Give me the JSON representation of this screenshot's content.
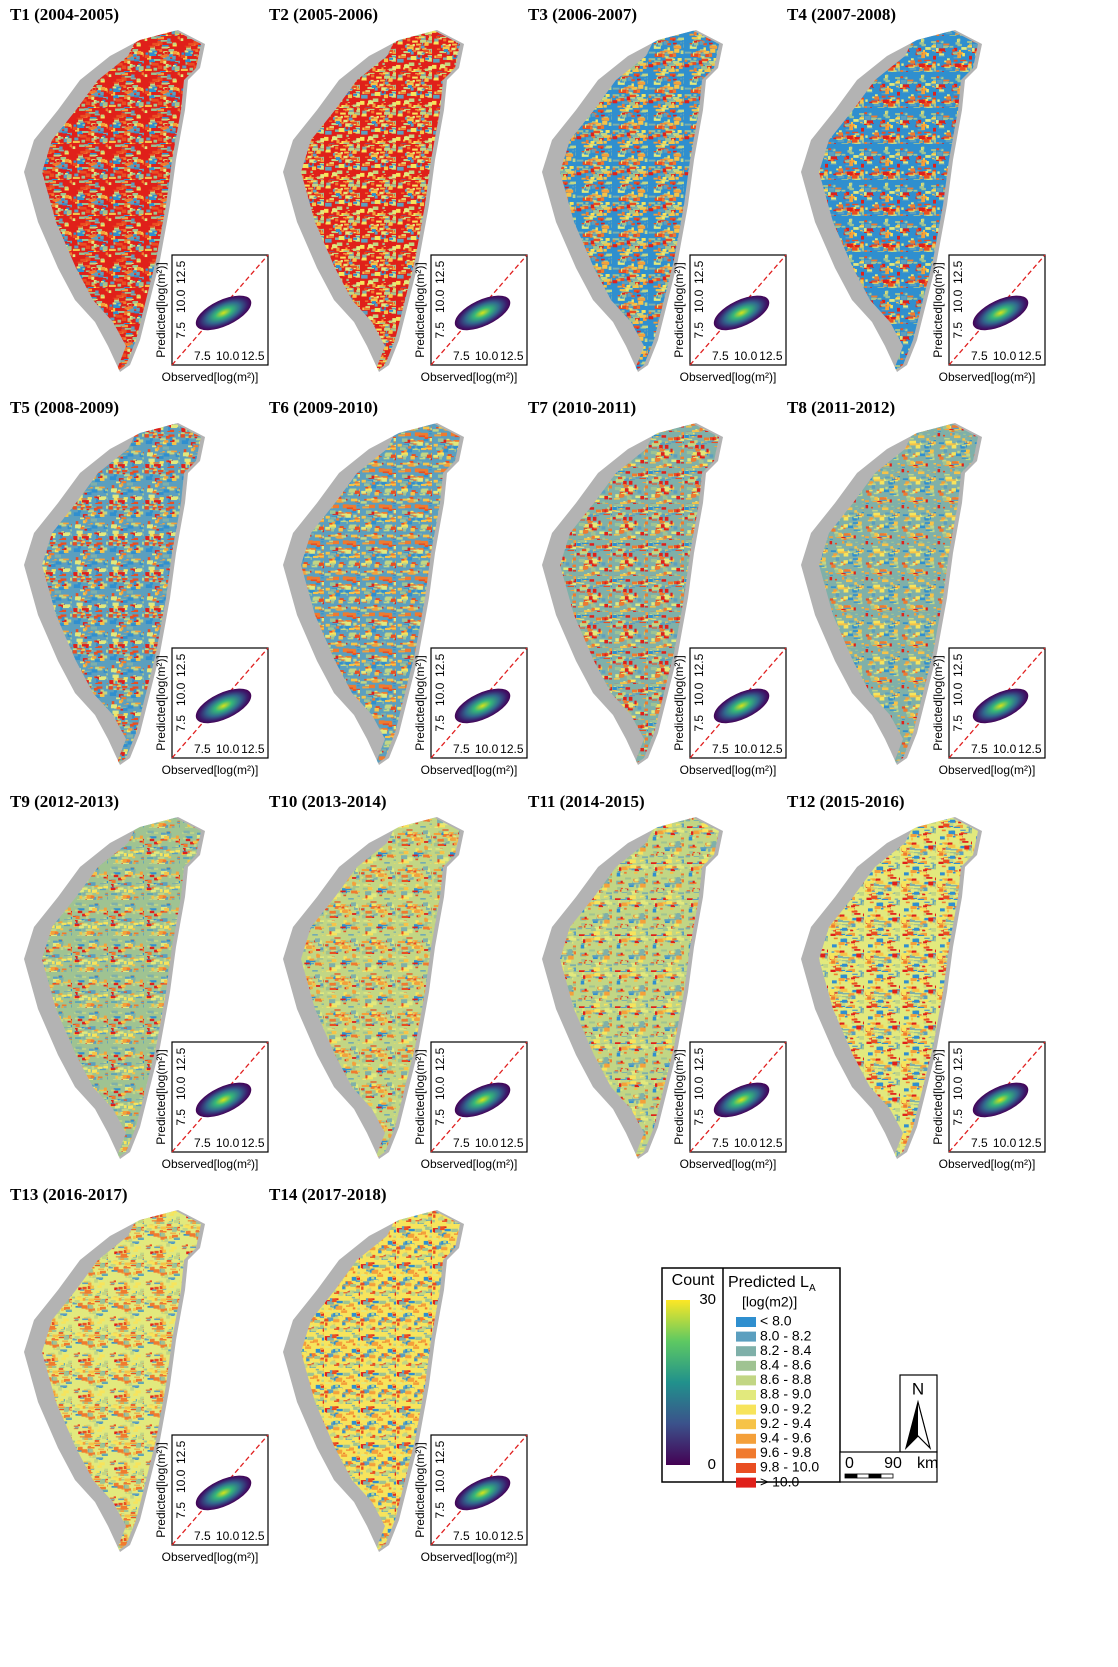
{
  "panels": [
    {
      "title": "T1 (2004-2005)"
    },
    {
      "title": "T2 (2005-2006)"
    },
    {
      "title": "T3 (2006-2007)"
    },
    {
      "title": "T4 (2007-2008)"
    },
    {
      "title": "T5 (2008-2009)"
    },
    {
      "title": "T6 (2009-2010)"
    },
    {
      "title": "T7 (2010-2011)"
    },
    {
      "title": "T8 (2011-2012)"
    },
    {
      "title": "T9 (2012-2013)"
    },
    {
      "title": "T10 (2013-2014)"
    },
    {
      "title": "T11 (2014-2015)"
    },
    {
      "title": "T12 (2015-2016)"
    },
    {
      "title": "T13 (2016-2017)"
    },
    {
      "title": "T14 (2017-2018)"
    }
  ],
  "inset": {
    "x_label": "Observed[log(m²)]",
    "y_label": "Predicted[log(m²)]",
    "xlim": [
      4.5,
      14
    ],
    "ylim": [
      4.5,
      14
    ],
    "ticks": [
      7.5,
      {
        "value": 10,
        "label": "10.0"
      },
      12.5
    ]
  },
  "legend": {
    "count_title": "Count",
    "count_lim": [
      0,
      30
    ],
    "count_ticks": [
      0,
      30
    ],
    "class_title": "Predicted L",
    "class_title_sub": "A",
    "class_unit": "[log(m2)]",
    "classes": [
      {
        "label": "< 8.0",
        "color": "#2f8fcf"
      },
      {
        "label": "8.0 - 8.2",
        "color": "#5b9fbf"
      },
      {
        "label": "8.2 - 8.4",
        "color": "#7fb0a9"
      },
      {
        "label": "8.4 - 8.6",
        "color": "#9fc392"
      },
      {
        "label": "8.6 - 8.8",
        "color": "#c2d684"
      },
      {
        "label": "8.8 - 9.0",
        "color": "#e2e97d"
      },
      {
        "label": "9.0 - 9.2",
        "color": "#f7e45c"
      },
      {
        "label": "9.2 - 9.4",
        "color": "#f6c348"
      },
      {
        "label": "9.4 - 9.6",
        "color": "#f4a03a"
      },
      {
        "label": "9.6 - 9.8",
        "color": "#f07a2e"
      },
      {
        "label": "9.8 - 10.0",
        "color": "#e94e22"
      },
      {
        "label": "> 10.0",
        "color": "#e0201a"
      }
    ]
  },
  "scale_bar": {
    "labels": [
      "0",
      "90",
      "km"
    ]
  },
  "north": "N"
}
